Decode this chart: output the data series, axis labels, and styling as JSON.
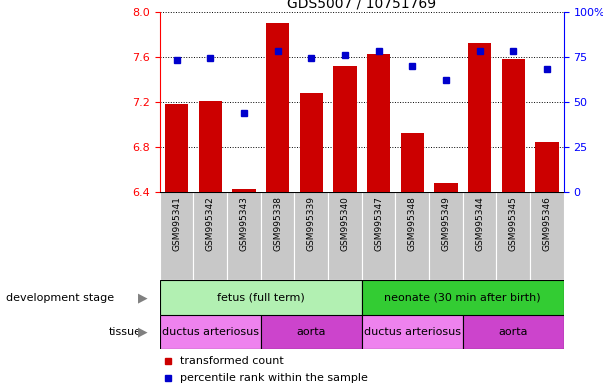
{
  "title": "GDS5007 / 10751769",
  "samples": [
    "GSM995341",
    "GSM995342",
    "GSM995343",
    "GSM995338",
    "GSM995339",
    "GSM995340",
    "GSM995347",
    "GSM995348",
    "GSM995349",
    "GSM995344",
    "GSM995345",
    "GSM995346"
  ],
  "red_values": [
    7.18,
    7.21,
    6.43,
    7.9,
    7.28,
    7.52,
    7.62,
    6.92,
    6.48,
    7.72,
    7.58,
    6.84
  ],
  "blue_values": [
    73,
    74,
    44,
    78,
    74,
    76,
    78,
    70,
    62,
    78,
    78,
    68
  ],
  "ylim_left": [
    6.4,
    8.0
  ],
  "ylim_right": [
    0,
    100
  ],
  "yticks_left": [
    6.4,
    6.8,
    7.2,
    7.6,
    8.0
  ],
  "yticks_right": [
    0,
    25,
    50,
    75,
    100
  ],
  "development_stage_groups": [
    {
      "label": "fetus (full term)",
      "start": 0,
      "end": 6,
      "color": "#b2f0b2"
    },
    {
      "label": "neonate (30 min after birth)",
      "start": 6,
      "end": 12,
      "color": "#33cc33"
    }
  ],
  "tissue_groups": [
    {
      "label": "ductus arteriosus",
      "start": 0,
      "end": 3,
      "color": "#ee82ee"
    },
    {
      "label": "aorta",
      "start": 3,
      "end": 6,
      "color": "#cc44cc"
    },
    {
      "label": "ductus arteriosus",
      "start": 6,
      "end": 9,
      "color": "#ee82ee"
    },
    {
      "label": "aorta",
      "start": 9,
      "end": 12,
      "color": "#cc44cc"
    }
  ],
  "bar_color": "#cc0000",
  "dot_color": "#0000cc",
  "base_value": 6.4,
  "bg_color": "#ffffff",
  "tick_bg": "#c8c8c8"
}
